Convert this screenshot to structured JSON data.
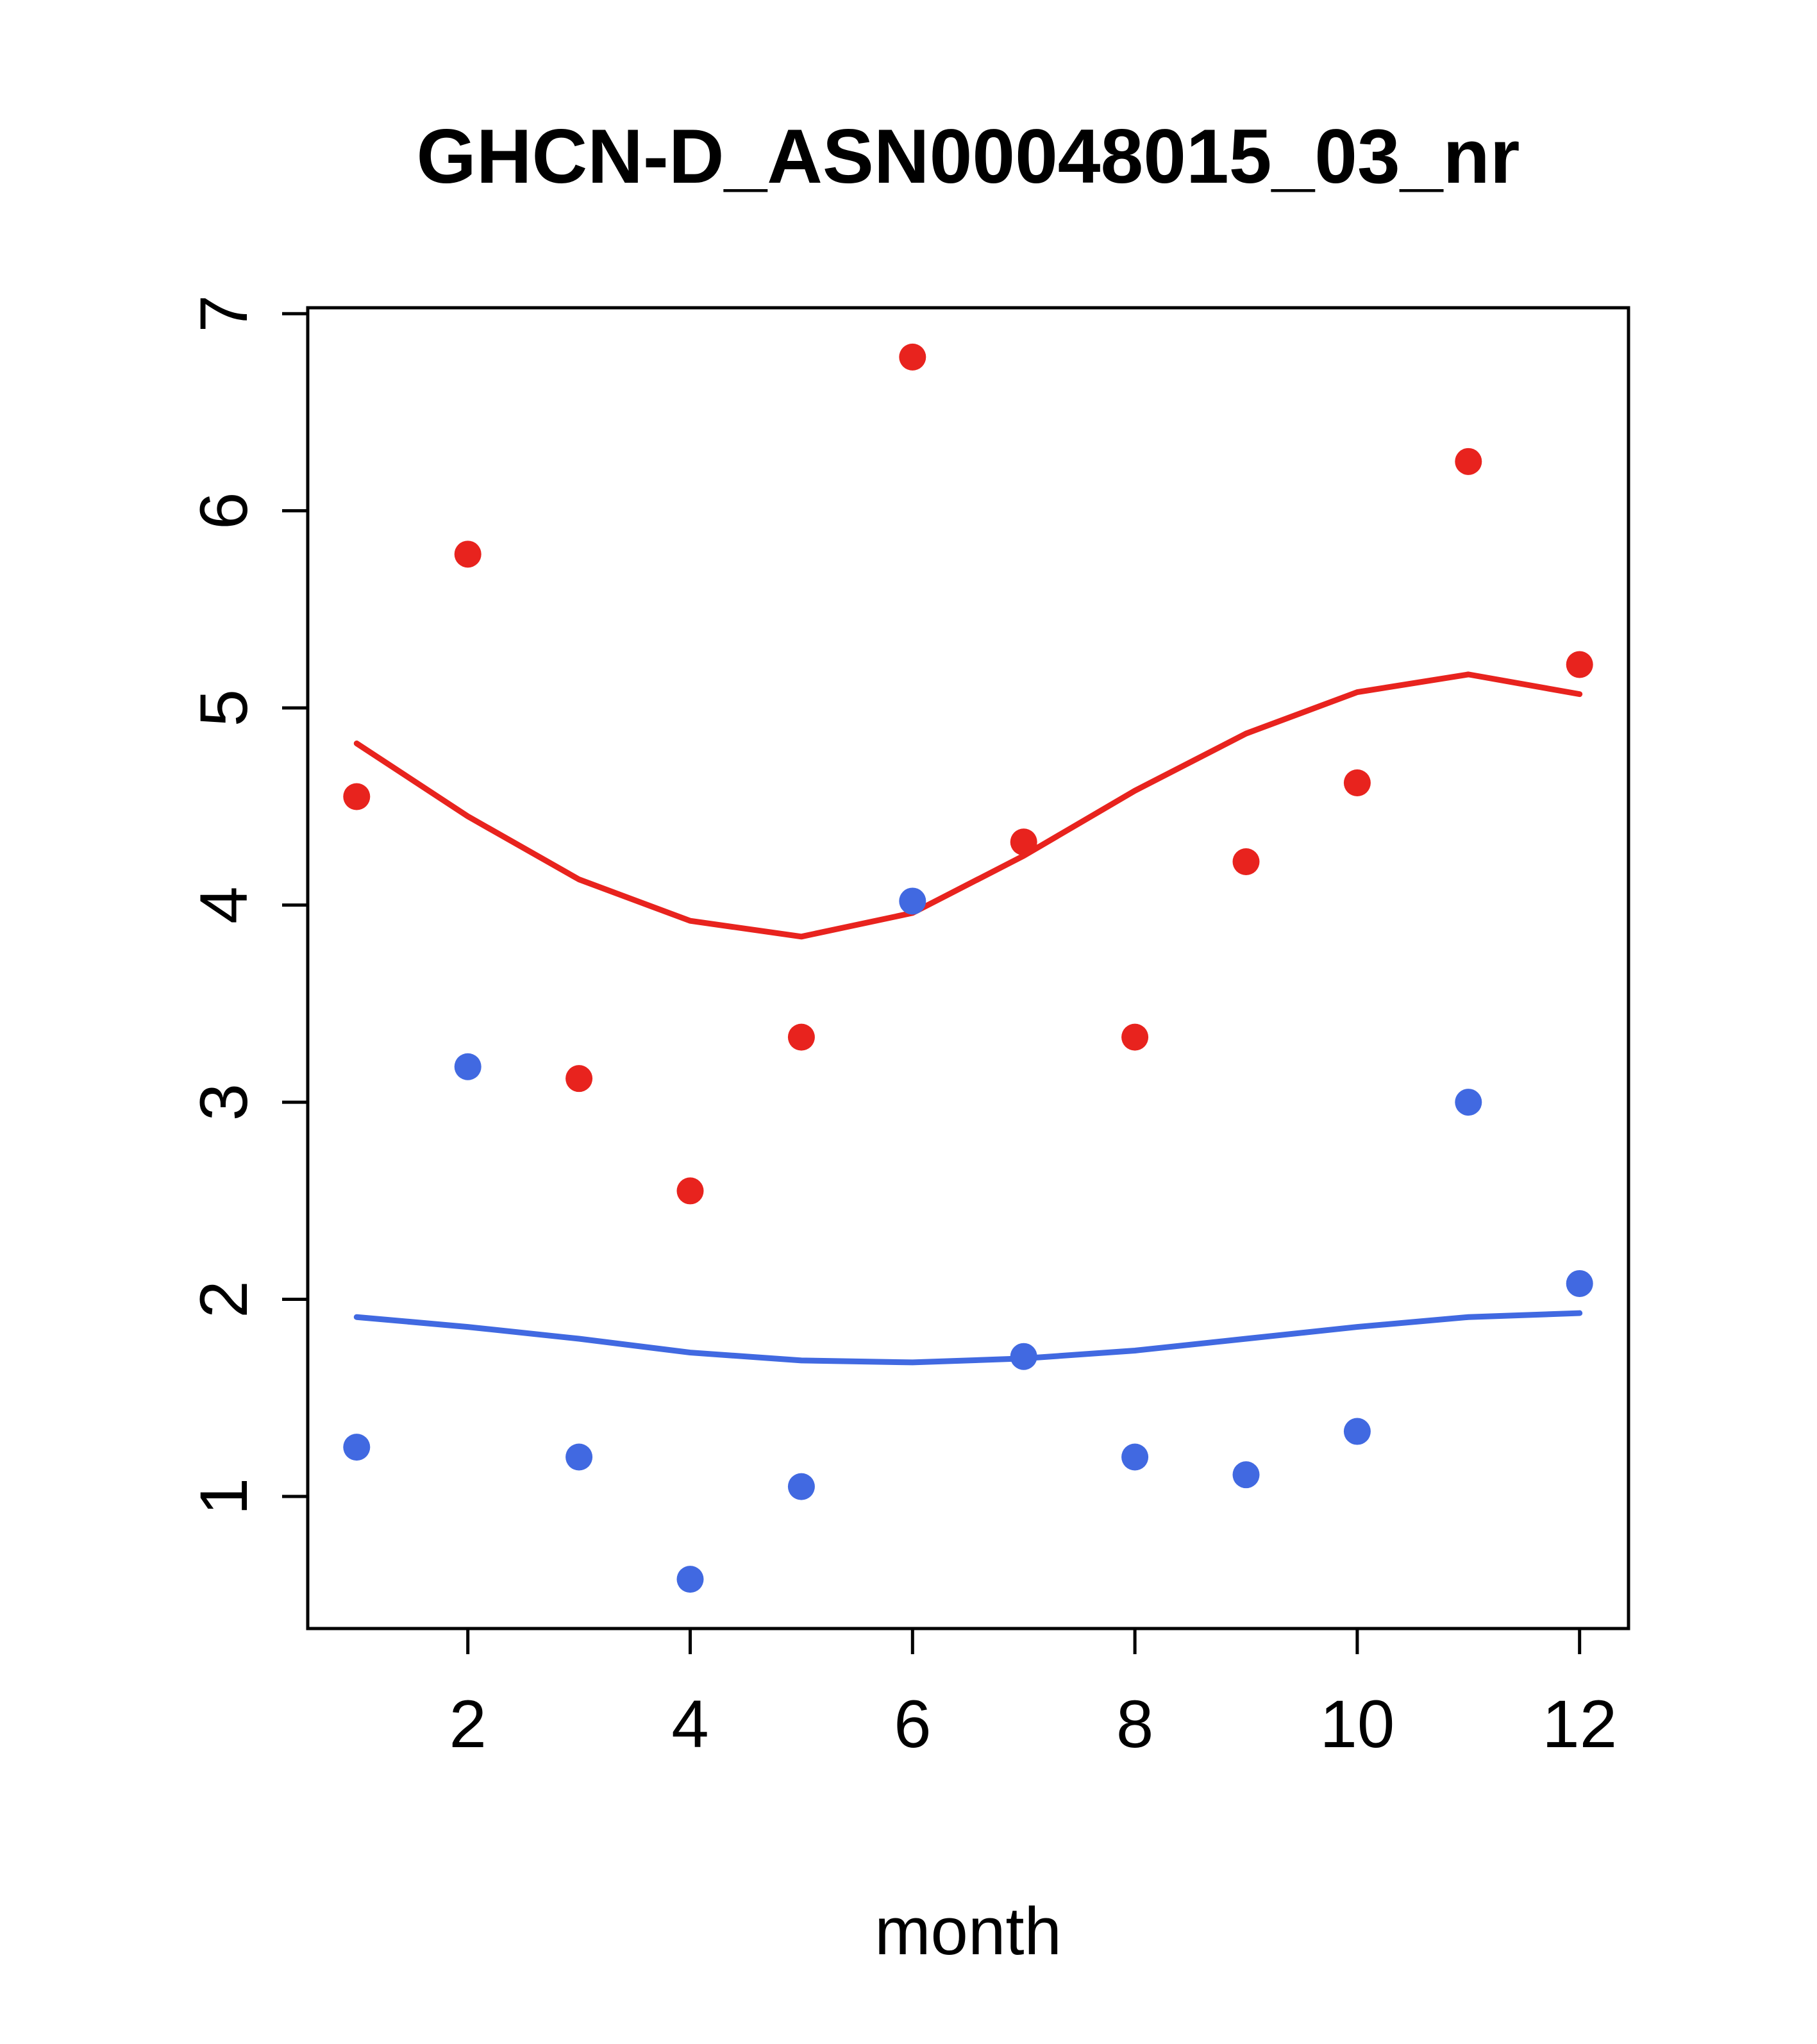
{
  "page": {
    "background": "#ffffff"
  },
  "chart_data": {
    "type": "scatter",
    "title": "GHCN-D_ASN00048015_03_nr",
    "xlabel": "month",
    "ylabel": "",
    "xlim": [
      0.56,
      12.44
    ],
    "ylim": [
      0.33,
      7.03
    ],
    "xticks": [
      2,
      4,
      6,
      8,
      10,
      12
    ],
    "yticks": [
      1,
      2,
      3,
      4,
      5,
      6,
      7
    ],
    "grid": false,
    "legend_position": "none",
    "months": [
      1,
      2,
      3,
      4,
      5,
      6,
      7,
      8,
      9,
      10,
      11,
      12
    ],
    "colors": {
      "red": "#e8231e",
      "blue": "#4169e1",
      "axis": "#000000"
    },
    "series": [
      {
        "name": "red-points",
        "kind": "points",
        "color": "#e8231e",
        "values": [
          4.55,
          5.78,
          3.12,
          2.55,
          3.33,
          6.78,
          4.32,
          3.33,
          4.22,
          4.62,
          6.25,
          5.22
        ]
      },
      {
        "name": "blue-points",
        "kind": "points",
        "color": "#4169e1",
        "values": [
          1.25,
          3.18,
          1.2,
          0.58,
          1.05,
          4.02,
          1.71,
          1.2,
          1.11,
          1.33,
          3.0,
          2.08
        ]
      },
      {
        "name": "red-smooth-line",
        "kind": "line",
        "color": "#e8231e",
        "values": [
          4.82,
          4.45,
          4.13,
          3.92,
          3.84,
          3.96,
          4.25,
          4.58,
          4.87,
          5.08,
          5.17,
          5.07
        ]
      },
      {
        "name": "blue-smooth-line",
        "kind": "line",
        "color": "#4169e1",
        "values": [
          1.91,
          1.86,
          1.8,
          1.73,
          1.69,
          1.68,
          1.7,
          1.74,
          1.8,
          1.86,
          1.91,
          1.93
        ]
      }
    ]
  }
}
